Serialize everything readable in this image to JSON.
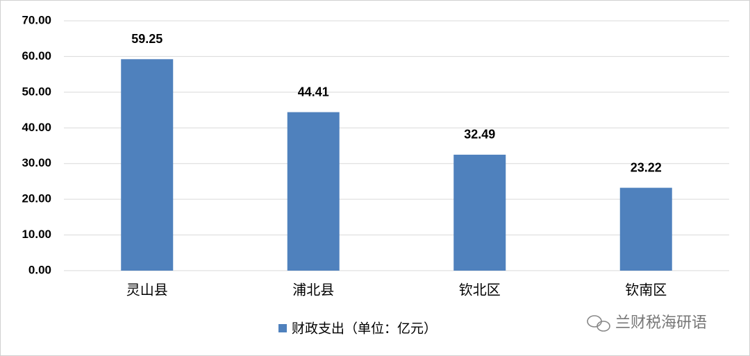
{
  "chart_data": {
    "type": "bar",
    "categories": [
      "灵山县",
      "浦北县",
      "钦北区",
      "钦南区"
    ],
    "series": [
      {
        "name": "财政支出（单位：亿元）",
        "color": "#4f81bd",
        "values": [
          59.25,
          44.41,
          32.49,
          23.22
        ]
      }
    ],
    "ylim": [
      0,
      70
    ],
    "yticks": [
      {
        "value": 0,
        "label": "0.00"
      },
      {
        "value": 10,
        "label": "10.00"
      },
      {
        "value": 20,
        "label": "20.00"
      },
      {
        "value": 30,
        "label": "30.00"
      },
      {
        "value": 40,
        "label": "40.00"
      },
      {
        "value": 50,
        "label": "50.00"
      },
      {
        "value": 60,
        "label": "60.00"
      },
      {
        "value": 70,
        "label": "70.00"
      }
    ],
    "grid": true,
    "legend": "bottom",
    "watermark": "兰财税海研语"
  }
}
